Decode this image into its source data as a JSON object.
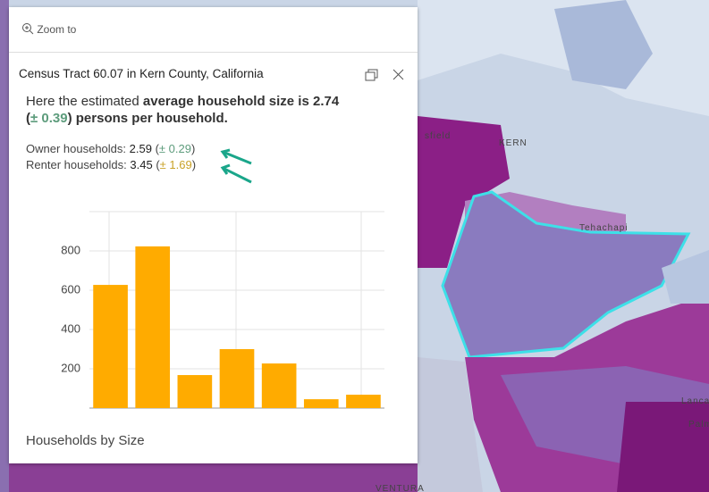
{
  "popup": {
    "zoom": "Zoom to",
    "title": "Census Tract 60.07 in Kern County, California",
    "summary": {
      "lead": "Here the estimated",
      "bold": "average household size is 2.74",
      "open": "(",
      "moe": "± 0.39",
      "tail": ") persons per household."
    },
    "owner": {
      "label": "Owner households:",
      "value": "2.59",
      "open": "(",
      "moe": "± 0.29",
      "close": ")"
    },
    "renter": {
      "label": "Renter households:",
      "value": "3.45",
      "open": "(",
      "moe": "± 1.69",
      "close": ")"
    }
  },
  "chart_data": {
    "type": "bar",
    "title": "Households by Size",
    "categories": [
      null,
      null,
      null,
      null,
      null,
      null,
      null
    ],
    "values": [
      627,
      823,
      168,
      300,
      227,
      45,
      68
    ],
    "color": "#ffab00",
    "ylim": [
      0,
      1000
    ],
    "yticks": [
      200,
      400,
      600,
      800
    ],
    "grid": true
  },
  "map": {
    "labels": [
      "sfield",
      "KERN",
      "Tehachapi",
      "Lanca",
      "Palm",
      "VENTURA"
    ]
  }
}
